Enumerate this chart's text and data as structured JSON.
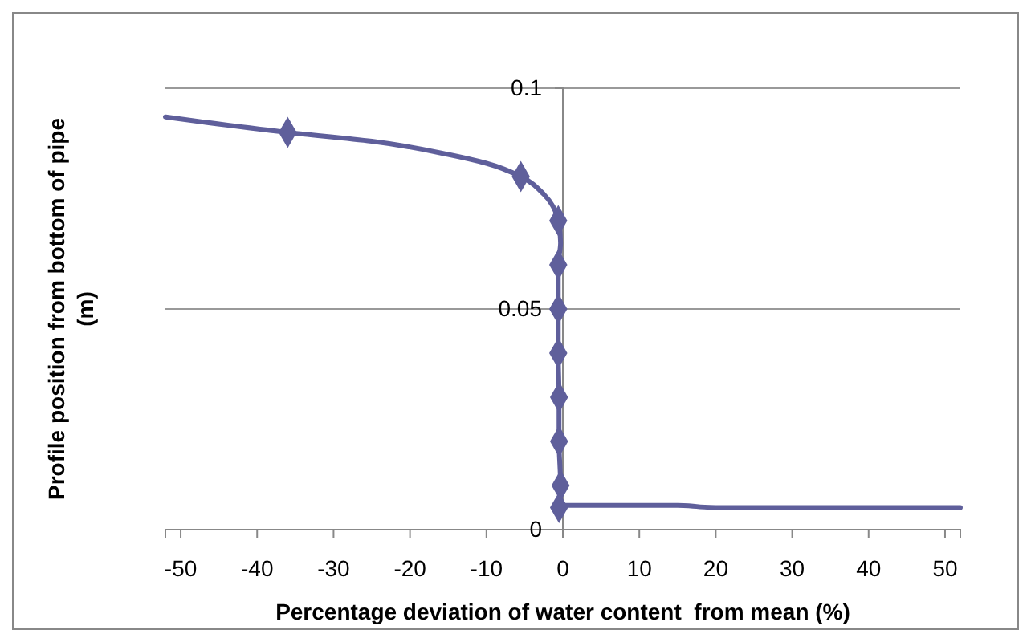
{
  "chart_data": {
    "type": "line",
    "xlabel": "Percentage deviation of water content  from mean (%)",
    "ylabel": "Profile position from bottom of pipe (m)",
    "xlim": [
      -52,
      52
    ],
    "xticks": [
      -50,
      -40,
      -30,
      -20,
      -10,
      0,
      10,
      20,
      30,
      40,
      50
    ],
    "ylim": [
      0,
      0.1
    ],
    "yticks": [
      0,
      0.05,
      0.1
    ],
    "grid": "y",
    "series": [
      {
        "type": "line",
        "color": "#5f5f9b",
        "marker": "none",
        "x": [
          -52,
          -36,
          -25,
          -15,
          -10,
          -5.5,
          -2.5,
          -0.6,
          -0.3,
          -0.6,
          -0.6,
          -0.6,
          -0.5,
          -0.5,
          -0.3,
          -0.5,
          0,
          15,
          20,
          52
        ],
        "values": [
          0.0935,
          0.09,
          0.088,
          0.085,
          0.083,
          0.08,
          0.076,
          0.07,
          0.065,
          0.06,
          0.05,
          0.04,
          0.03,
          0.02,
          0.01,
          0.005,
          0.0055,
          0.0055,
          0.005,
          0.005
        ]
      },
      {
        "type": "scatter",
        "color": "#5f5f9b",
        "marker": "diamond",
        "x": [
          -36,
          -5.5,
          -0.6,
          -0.6,
          -0.6,
          -0.6,
          -0.5,
          -0.5,
          -0.3,
          -0.5
        ],
        "values": [
          0.09,
          0.08,
          0.07,
          0.06,
          0.05,
          0.04,
          0.03,
          0.02,
          0.01,
          0.005
        ]
      }
    ]
  }
}
